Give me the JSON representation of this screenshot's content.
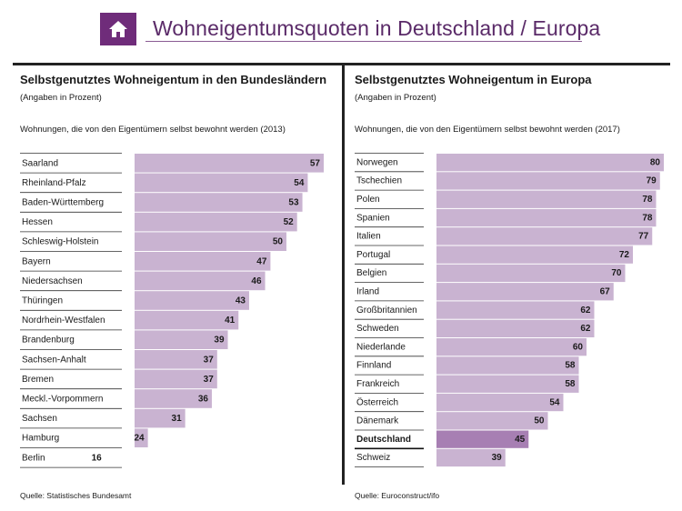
{
  "header": {
    "icon": "home-icon",
    "accent_color": "#6f2c7a",
    "title": "Wohneigentumsquoten in Deutschland / Europa"
  },
  "chart_data": [
    {
      "type": "bar",
      "orientation": "horizontal",
      "title": "Selbstgenutztes Wohneigentum in den Bundesländern",
      "subtitle": "(Angaben in Prozent)",
      "description": "Wohnungen, die von den Eigentümern selbst bewohnt werden (2013)",
      "source": "Quelle: Statistisches Bundesamt",
      "xlim": [
        0,
        100
      ],
      "grid": false,
      "bar_color": "#c9b3d1",
      "categories": [
        "Saarland",
        "Rheinland-Pfalz",
        "Baden-Württemberg",
        "Hessen",
        "Schleswig-Holstein",
        "Bayern",
        "Niedersachsen",
        "Thüringen",
        "Nordrhein-Westfalen",
        "Brandenburg",
        "Sachsen-Anhalt",
        "Bremen",
        "Meckl.-Vorpommern",
        "Sachsen",
        "Hamburg",
        "Berlin"
      ],
      "values": [
        57,
        54,
        53,
        52,
        50,
        47,
        46,
        43,
        41,
        39,
        37,
        37,
        36,
        31,
        24,
        16
      ]
    },
    {
      "type": "bar",
      "orientation": "horizontal",
      "title": "Selbstgenutztes Wohneigentum in Europa",
      "subtitle": "(Angaben in Prozent)",
      "description": "Wohnungen, die von den Eigentümern selbst bewohnt werden (2017)",
      "source": "Quelle: Euroconstruct/ifo",
      "xlim": [
        0,
        100
      ],
      "grid": false,
      "bar_color": "#c9b3d1",
      "highlight_color": "#a77fb3",
      "highlight_category": "Deutschland",
      "categories": [
        "Norwegen",
        "Tschechien",
        "Polen",
        "Spanien",
        "Italien",
        "Portugal",
        "Belgien",
        "Irland",
        "Großbritannien",
        "Schweden",
        "Niederlande",
        "Finnland",
        "Frankreich",
        "Österreich",
        "Dänemark",
        "Deutschland",
        "Schweiz"
      ],
      "values": [
        80,
        79,
        78,
        78,
        77,
        72,
        70,
        67,
        62,
        62,
        60,
        58,
        58,
        54,
        50,
        45,
        39
      ]
    }
  ]
}
